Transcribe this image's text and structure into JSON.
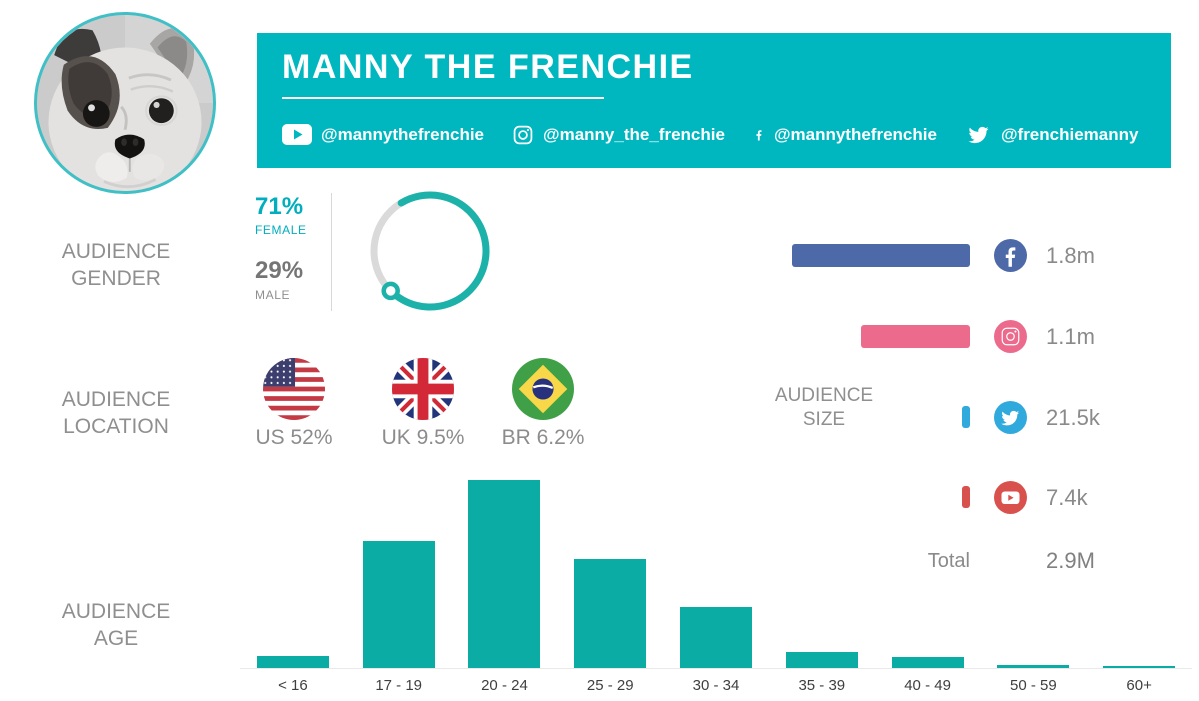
{
  "profile": {
    "name": "MANNY THE FRENCHIE"
  },
  "header": {
    "socials": [
      {
        "platform": "YouTube",
        "handle": "@mannythefrenchie"
      },
      {
        "platform": "Instagram",
        "handle": "@manny_the_frenchie"
      },
      {
        "platform": "Facebook",
        "handle": "@mannythefrenchie"
      },
      {
        "platform": "Twitter",
        "handle": "@frenchiemanny"
      }
    ]
  },
  "sections": {
    "gender": {
      "label_line1": "AUDIENCE",
      "label_line2": "GENDER",
      "female_pct": "71%",
      "female_label": "FEMALE",
      "male_pct": "29%",
      "male_label": "MALE"
    },
    "location": {
      "label_line1": "AUDIENCE",
      "label_line2": "LOCATION",
      "items": [
        {
          "country": "US",
          "label": "US 52%"
        },
        {
          "country": "UK",
          "label": "UK 9.5%"
        },
        {
          "country": "BR",
          "label": "BR 6.2%"
        }
      ]
    },
    "size": {
      "label_line1": "AUDIENCE",
      "label_line2": "SIZE"
    },
    "age": {
      "label_line1": "AUDIENCE",
      "label_line2": "AGE"
    }
  },
  "colors": {
    "header_teal": "#00B7C0",
    "chart_teal": "#0BACA3",
    "ring_teal": "#1CB2A9",
    "ring_track": "#DADADA",
    "female_teal": "#00AEBE",
    "avatar_border": "#3FBFC6",
    "facebook_blue": "#4E69A8",
    "instagram_pink": "#EC6A8C",
    "twitter_blue": "#30A9DC",
    "youtube_red": "#D8514D",
    "gray_text": "#8F8F8F",
    "value_gray": "#8A8A8A"
  },
  "chart_data": [
    {
      "type": "pie",
      "title": "Audience gender",
      "categories": [
        "Female",
        "Male"
      ],
      "values": [
        71,
        29
      ],
      "unit": "%",
      "colors": [
        "#1CB2A9",
        "#DADADA"
      ],
      "style": "donut-ring with end marker"
    },
    {
      "type": "bar",
      "orientation": "horizontal",
      "title": "Audience size",
      "categories": [
        "Facebook",
        "Instagram",
        "Twitter",
        "YouTube"
      ],
      "values": [
        1800000,
        1100000,
        21500,
        7400
      ],
      "value_labels": [
        "1.8m",
        "1.1m",
        "21.5k",
        "7.4k"
      ],
      "colors": [
        "#4E69A8",
        "#EC6A8C",
        "#30A9DC",
        "#D8514D"
      ],
      "total_label": "Total",
      "total_value_label": "2.9M",
      "total": 2900000
    },
    {
      "type": "bar",
      "title": "Audience age",
      "categories": [
        "< 16",
        "17 - 19",
        "20 - 24",
        "25 - 29",
        "30 - 34",
        "35 - 39",
        "40 - 49",
        "50 - 59",
        "60+"
      ],
      "values": [
        2,
        21,
        31,
        18,
        10,
        2.7,
        1.8,
        0.5,
        0.3
      ],
      "unit": "% of audience (estimated from bar heights)",
      "xlabel": "",
      "ylabel": "",
      "ylim": [
        0,
        32
      ],
      "grid": false,
      "bar_color": "#0BACA3"
    }
  ]
}
